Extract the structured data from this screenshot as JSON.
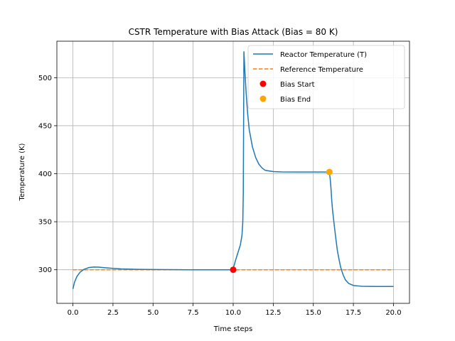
{
  "chart_data": {
    "type": "line",
    "title": "CSTR Temperature with Bias Attack (Bias = 80 K)",
    "xlabel": "Time steps",
    "ylabel": "Temperature (K)",
    "xlim": [
      -1.0,
      21.0
    ],
    "ylim": [
      265,
      538
    ],
    "xticks": [
      0.0,
      2.5,
      5.0,
      7.5,
      10.0,
      12.5,
      15.0,
      17.5,
      20.0
    ],
    "xtick_labels": [
      "0.0",
      "2.5",
      "5.0",
      "7.5",
      "10.0",
      "12.5",
      "15.0",
      "17.5",
      "20.0"
    ],
    "yticks": [
      300,
      350,
      400,
      450,
      500
    ],
    "ytick_labels": [
      "300",
      "350",
      "400",
      "450",
      "500"
    ],
    "grid": true,
    "legend_position": "top-right",
    "series": [
      {
        "name": "Reactor Temperature (T)",
        "color": "#1f77b4",
        "style": "solid",
        "points": [
          [
            0.0,
            280
          ],
          [
            0.1,
            287
          ],
          [
            0.25,
            293
          ],
          [
            0.45,
            297.5
          ],
          [
            0.7,
            300.5
          ],
          [
            1.0,
            302.3
          ],
          [
            1.3,
            302.8
          ],
          [
            1.6,
            302.7
          ],
          [
            2.0,
            302.1
          ],
          [
            2.5,
            301.4
          ],
          [
            3.0,
            300.9
          ],
          [
            4.0,
            300.4
          ],
          [
            5.0,
            300.2
          ],
          [
            7.0,
            300.0
          ],
          [
            10.0,
            300.0
          ],
          [
            10.05,
            304
          ],
          [
            10.15,
            310
          ],
          [
            10.3,
            318
          ],
          [
            10.45,
            326
          ],
          [
            10.55,
            336
          ],
          [
            10.6,
            350
          ],
          [
            10.63,
            380
          ],
          [
            10.65,
            450
          ],
          [
            10.67,
            527
          ],
          [
            10.72,
            510
          ],
          [
            10.8,
            486
          ],
          [
            10.9,
            463
          ],
          [
            11.0,
            446
          ],
          [
            11.2,
            428
          ],
          [
            11.4,
            417
          ],
          [
            11.6,
            410
          ],
          [
            11.8,
            406
          ],
          [
            12.0,
            403.5
          ],
          [
            12.5,
            402.2
          ],
          [
            13.0,
            401.9
          ],
          [
            14.0,
            401.8
          ],
          [
            15.0,
            401.8
          ],
          [
            16.0,
            401.8
          ],
          [
            16.05,
            395
          ],
          [
            16.1,
            385
          ],
          [
            16.15,
            372
          ],
          [
            16.2,
            362
          ],
          [
            16.3,
            347
          ],
          [
            16.4,
            333
          ],
          [
            16.5,
            320
          ],
          [
            16.6,
            311
          ],
          [
            16.7,
            303
          ],
          [
            16.85,
            295
          ],
          [
            17.0,
            289.5
          ],
          [
            17.2,
            285.8
          ],
          [
            17.5,
            283.6
          ],
          [
            18.0,
            282.8
          ],
          [
            19.0,
            282.6
          ],
          [
            20.0,
            282.6
          ]
        ]
      },
      {
        "name": "Reference Temperature",
        "color": "#ff7f0e",
        "style": "dashed",
        "points": [
          [
            0.0,
            300
          ],
          [
            20.0,
            300
          ]
        ]
      }
    ],
    "markers": [
      {
        "name": "Bias Start",
        "color": "#ff0000",
        "x": 10.0,
        "y": 300.0
      },
      {
        "name": "Bias End",
        "color": "#ffa500",
        "x": 16.0,
        "y": 401.8
      }
    ]
  }
}
